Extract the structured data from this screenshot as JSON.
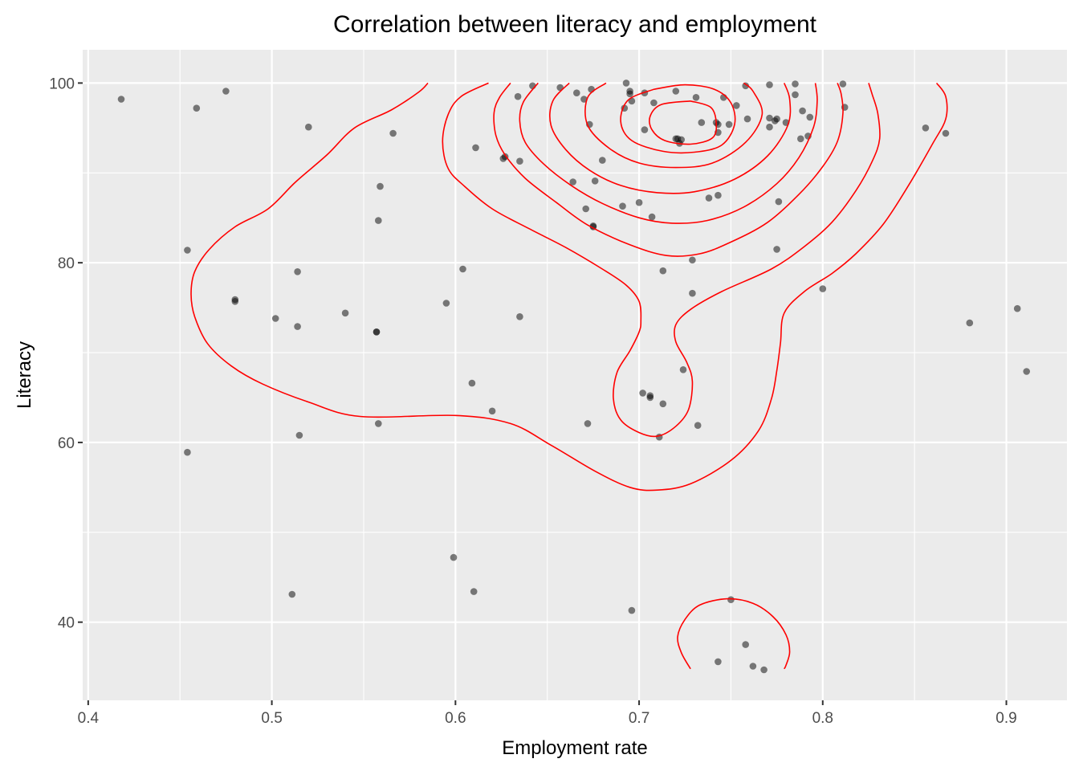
{
  "chart_data": {
    "type": "scatter",
    "title": "Correlation between literacy and employment",
    "xlabel": "Employment rate",
    "ylabel": "Literacy",
    "xlim": [
      0.397,
      0.933
    ],
    "ylim": [
      31.3,
      103.7
    ],
    "x_ticks": [
      0.4,
      0.5,
      0.6,
      0.7,
      0.8,
      0.9
    ],
    "x_tick_labels": [
      "0.4",
      "0.5",
      "0.6",
      "0.7",
      "0.8",
      "0.9"
    ],
    "y_ticks": [
      40,
      60,
      80,
      100
    ],
    "y_tick_labels": [
      "40",
      "60",
      "80",
      "100"
    ],
    "grid": true,
    "legend": "none",
    "colors": {
      "panel": "#ebebeb",
      "grid": "#ffffff",
      "points": "#000000",
      "contour": "#ff0000"
    },
    "points": [
      {
        "x": 0.418,
        "y": 98.2
      },
      {
        "x": 0.459,
        "y": 97.2
      },
      {
        "x": 0.475,
        "y": 99.1
      },
      {
        "x": 0.454,
        "y": 81.4
      },
      {
        "x": 0.454,
        "y": 58.9
      },
      {
        "x": 0.48,
        "y": 75.9
      },
      {
        "x": 0.48,
        "y": 75.7
      },
      {
        "x": 0.502,
        "y": 73.8
      },
      {
        "x": 0.511,
        "y": 43.1
      },
      {
        "x": 0.514,
        "y": 79.0
      },
      {
        "x": 0.514,
        "y": 72.9
      },
      {
        "x": 0.515,
        "y": 60.8
      },
      {
        "x": 0.52,
        "y": 95.1
      },
      {
        "x": 0.54,
        "y": 74.4
      },
      {
        "x": 0.557,
        "y": 72.3
      },
      {
        "x": 0.557,
        "y": 72.3
      },
      {
        "x": 0.558,
        "y": 84.7
      },
      {
        "x": 0.558,
        "y": 62.1
      },
      {
        "x": 0.559,
        "y": 88.5
      },
      {
        "x": 0.566,
        "y": 94.4
      },
      {
        "x": 0.595,
        "y": 75.5
      },
      {
        "x": 0.599,
        "y": 47.2
      },
      {
        "x": 0.604,
        "y": 79.3
      },
      {
        "x": 0.609,
        "y": 66.6
      },
      {
        "x": 0.61,
        "y": 43.4
      },
      {
        "x": 0.611,
        "y": 92.8
      },
      {
        "x": 0.62,
        "y": 63.5
      },
      {
        "x": 0.626,
        "y": 91.6
      },
      {
        "x": 0.627,
        "y": 91.8
      },
      {
        "x": 0.634,
        "y": 98.5
      },
      {
        "x": 0.635,
        "y": 91.3
      },
      {
        "x": 0.635,
        "y": 74.0
      },
      {
        "x": 0.642,
        "y": 99.7
      },
      {
        "x": 0.657,
        "y": 99.5
      },
      {
        "x": 0.664,
        "y": 89.0
      },
      {
        "x": 0.666,
        "y": 98.9
      },
      {
        "x": 0.67,
        "y": 98.2
      },
      {
        "x": 0.671,
        "y": 86.0
      },
      {
        "x": 0.672,
        "y": 62.1
      },
      {
        "x": 0.673,
        "y": 95.4
      },
      {
        "x": 0.674,
        "y": 99.3
      },
      {
        "x": 0.675,
        "y": 84.1
      },
      {
        "x": 0.675,
        "y": 84.0
      },
      {
        "x": 0.676,
        "y": 89.1
      },
      {
        "x": 0.68,
        "y": 91.4
      },
      {
        "x": 0.691,
        "y": 86.3
      },
      {
        "x": 0.692,
        "y": 97.2
      },
      {
        "x": 0.693,
        "y": 100.0
      },
      {
        "x": 0.695,
        "y": 99.1
      },
      {
        "x": 0.695,
        "y": 98.8
      },
      {
        "x": 0.696,
        "y": 41.3
      },
      {
        "x": 0.696,
        "y": 98.0
      },
      {
        "x": 0.7,
        "y": 86.7
      },
      {
        "x": 0.702,
        "y": 65.5
      },
      {
        "x": 0.703,
        "y": 98.9
      },
      {
        "x": 0.703,
        "y": 94.8
      },
      {
        "x": 0.706,
        "y": 65.0
      },
      {
        "x": 0.706,
        "y": 65.2
      },
      {
        "x": 0.707,
        "y": 85.1
      },
      {
        "x": 0.708,
        "y": 97.8
      },
      {
        "x": 0.711,
        "y": 60.6
      },
      {
        "x": 0.713,
        "y": 79.1
      },
      {
        "x": 0.713,
        "y": 64.3
      },
      {
        "x": 0.72,
        "y": 99.1
      },
      {
        "x": 0.72,
        "y": 93.8
      },
      {
        "x": 0.721,
        "y": 93.8
      },
      {
        "x": 0.722,
        "y": 93.3
      },
      {
        "x": 0.723,
        "y": 93.7
      },
      {
        "x": 0.724,
        "y": 68.1
      },
      {
        "x": 0.729,
        "y": 80.3
      },
      {
        "x": 0.729,
        "y": 76.6
      },
      {
        "x": 0.731,
        "y": 98.4
      },
      {
        "x": 0.732,
        "y": 61.9
      },
      {
        "x": 0.734,
        "y": 95.6
      },
      {
        "x": 0.738,
        "y": 87.2
      },
      {
        "x": 0.742,
        "y": 95.6
      },
      {
        "x": 0.743,
        "y": 95.4
      },
      {
        "x": 0.743,
        "y": 94.5
      },
      {
        "x": 0.743,
        "y": 87.5
      },
      {
        "x": 0.743,
        "y": 35.6
      },
      {
        "x": 0.746,
        "y": 98.4
      },
      {
        "x": 0.749,
        "y": 95.4
      },
      {
        "x": 0.75,
        "y": 42.5
      },
      {
        "x": 0.753,
        "y": 97.5
      },
      {
        "x": 0.758,
        "y": 37.5
      },
      {
        "x": 0.758,
        "y": 99.7
      },
      {
        "x": 0.759,
        "y": 96.0
      },
      {
        "x": 0.762,
        "y": 35.1
      },
      {
        "x": 0.768,
        "y": 34.7
      },
      {
        "x": 0.771,
        "y": 99.8
      },
      {
        "x": 0.771,
        "y": 96.1
      },
      {
        "x": 0.771,
        "y": 95.1
      },
      {
        "x": 0.774,
        "y": 95.8
      },
      {
        "x": 0.775,
        "y": 96.0
      },
      {
        "x": 0.775,
        "y": 81.5
      },
      {
        "x": 0.776,
        "y": 86.8
      },
      {
        "x": 0.78,
        "y": 95.6
      },
      {
        "x": 0.785,
        "y": 99.9
      },
      {
        "x": 0.785,
        "y": 98.7
      },
      {
        "x": 0.788,
        "y": 93.8
      },
      {
        "x": 0.789,
        "y": 96.9
      },
      {
        "x": 0.792,
        "y": 94.1
      },
      {
        "x": 0.793,
        "y": 96.2
      },
      {
        "x": 0.8,
        "y": 77.1
      },
      {
        "x": 0.811,
        "y": 99.9
      },
      {
        "x": 0.812,
        "y": 97.3
      },
      {
        "x": 0.856,
        "y": 95.0
      },
      {
        "x": 0.867,
        "y": 94.4
      },
      {
        "x": 0.88,
        "y": 73.3
      },
      {
        "x": 0.906,
        "y": 74.9
      },
      {
        "x": 0.911,
        "y": 67.9
      }
    ],
    "density_contours": [
      [
        [
          0.585,
          100.0
        ],
        [
          0.58,
          99.0
        ],
        [
          0.565,
          97.0
        ],
        [
          0.545,
          95.0
        ],
        [
          0.53,
          92.0
        ],
        [
          0.513,
          89.0
        ],
        [
          0.498,
          86.0
        ],
        [
          0.48,
          84.0
        ],
        [
          0.466,
          81.5
        ],
        [
          0.458,
          79.0
        ],
        [
          0.456,
          76.5
        ],
        [
          0.458,
          74.0
        ],
        [
          0.465,
          71.0
        ],
        [
          0.478,
          68.5
        ],
        [
          0.495,
          66.5
        ],
        [
          0.52,
          64.5
        ],
        [
          0.548,
          62.9
        ],
        [
          0.6,
          63.0
        ],
        [
          0.63,
          62.1
        ],
        [
          0.652,
          59.7
        ],
        [
          0.676,
          56.8
        ],
        [
          0.695,
          55.0
        ],
        [
          0.71,
          54.7
        ],
        [
          0.728,
          55.4
        ],
        [
          0.75,
          58.0
        ],
        [
          0.765,
          61.3
        ],
        [
          0.772,
          64.8
        ],
        [
          0.775,
          68.0
        ],
        [
          0.777,
          71.1
        ],
        [
          0.779,
          74.4
        ],
        [
          0.79,
          76.8
        ],
        [
          0.805,
          78.8
        ],
        [
          0.818,
          81.0
        ],
        [
          0.833,
          84.3
        ],
        [
          0.847,
          88.7
        ],
        [
          0.86,
          93.3
        ],
        [
          0.867,
          96.0
        ],
        [
          0.867,
          98.5
        ],
        [
          0.862,
          100.0
        ]
      ],
      [
        [
          0.618,
          100.0
        ],
        [
          0.603,
          98.5
        ],
        [
          0.596,
          96.5
        ],
        [
          0.593,
          93.5
        ],
        [
          0.596,
          90.5
        ],
        [
          0.605,
          88.5
        ],
        [
          0.62,
          86.0
        ],
        [
          0.64,
          83.8
        ],
        [
          0.66,
          81.7
        ],
        [
          0.68,
          79.3
        ],
        [
          0.693,
          77.5
        ],
        [
          0.7,
          75.7
        ],
        [
          0.701,
          73.5
        ],
        [
          0.7,
          72.3
        ],
        [
          0.695,
          70.2
        ],
        [
          0.688,
          67.8
        ],
        [
          0.686,
          64.9
        ],
        [
          0.69,
          62.5
        ],
        [
          0.7,
          61.1
        ],
        [
          0.71,
          60.7
        ],
        [
          0.72,
          61.8
        ],
        [
          0.727,
          63.7
        ],
        [
          0.729,
          66.8
        ],
        [
          0.726,
          68.9
        ],
        [
          0.72,
          71.2
        ],
        [
          0.72,
          73.1
        ],
        [
          0.728,
          74.8
        ],
        [
          0.745,
          76.8
        ],
        [
          0.772,
          79.3
        ],
        [
          0.79,
          81.8
        ],
        [
          0.805,
          84.5
        ],
        [
          0.818,
          88.0
        ],
        [
          0.827,
          91.3
        ],
        [
          0.831,
          93.8
        ],
        [
          0.83,
          96.6
        ],
        [
          0.827,
          98.7
        ],
        [
          0.825,
          100.0
        ]
      ],
      [
        [
          0.63,
          100.0
        ],
        [
          0.624,
          98.4
        ],
        [
          0.621,
          96.7
        ],
        [
          0.622,
          94.2
        ],
        [
          0.627,
          92.0
        ],
        [
          0.638,
          89.4
        ],
        [
          0.655,
          86.7
        ],
        [
          0.672,
          84.2
        ],
        [
          0.695,
          82.0
        ],
        [
          0.715,
          80.8
        ],
        [
          0.733,
          81.0
        ],
        [
          0.75,
          82.3
        ],
        [
          0.77,
          84.5
        ],
        [
          0.787,
          87.6
        ],
        [
          0.8,
          90.7
        ],
        [
          0.808,
          93.5
        ],
        [
          0.811,
          96.6
        ],
        [
          0.81,
          98.8
        ],
        [
          0.808,
          100.0
        ]
      ],
      [
        [
          0.645,
          100.0
        ],
        [
          0.637,
          97.9
        ],
        [
          0.635,
          95.8
        ],
        [
          0.638,
          93.4
        ],
        [
          0.648,
          91.0
        ],
        [
          0.663,
          88.6
        ],
        [
          0.68,
          86.6
        ],
        [
          0.7,
          85.0
        ],
        [
          0.718,
          84.4
        ],
        [
          0.737,
          84.7
        ],
        [
          0.757,
          86.2
        ],
        [
          0.775,
          88.8
        ],
        [
          0.787,
          91.7
        ],
        [
          0.795,
          95.1
        ],
        [
          0.797,
          98.0
        ],
        [
          0.796,
          100.0
        ]
      ],
      [
        [
          0.662,
          100.0
        ],
        [
          0.653,
          98.0
        ],
        [
          0.652,
          95.3
        ],
        [
          0.66,
          92.6
        ],
        [
          0.673,
          90.3
        ],
        [
          0.69,
          88.6
        ],
        [
          0.71,
          87.8
        ],
        [
          0.73,
          87.9
        ],
        [
          0.752,
          89.3
        ],
        [
          0.77,
          91.9
        ],
        [
          0.781,
          95.3
        ],
        [
          0.782,
          98.2
        ],
        [
          0.779,
          100.0
        ]
      ],
      [
        [
          0.682,
          100.0
        ],
        [
          0.672,
          98.4
        ],
        [
          0.672,
          95.3
        ],
        [
          0.684,
          92.7
        ],
        [
          0.7,
          91.1
        ],
        [
          0.72,
          90.6
        ],
        [
          0.74,
          91.1
        ],
        [
          0.758,
          93.4
        ],
        [
          0.767,
          96.5
        ],
        [
          0.762,
          99.1
        ],
        [
          0.757,
          100.0
        ]
      ],
      [
        [
          0.708,
          99.3
        ],
        [
          0.694,
          98.1
        ],
        [
          0.69,
          95.7
        ],
        [
          0.696,
          93.6
        ],
        [
          0.713,
          92.4
        ],
        [
          0.73,
          92.3
        ],
        [
          0.745,
          93.1
        ],
        [
          0.752,
          95.4
        ],
        [
          0.75,
          97.8
        ],
        [
          0.741,
          99.3
        ],
        [
          0.725,
          99.8
        ],
        [
          0.708,
          99.3
        ]
      ],
      [
        [
          0.728,
          98.0
        ],
        [
          0.712,
          97.6
        ],
        [
          0.706,
          96.3
        ],
        [
          0.707,
          94.8
        ],
        [
          0.714,
          93.6
        ],
        [
          0.728,
          93.2
        ],
        [
          0.74,
          93.9
        ],
        [
          0.742,
          95.6
        ],
        [
          0.739,
          97.3
        ],
        [
          0.728,
          98.0
        ]
      ],
      [
        [
          0.728,
          34.8
        ],
        [
          0.723,
          36.6
        ],
        [
          0.721,
          38.4
        ],
        [
          0.725,
          40.3
        ],
        [
          0.733,
          41.9
        ],
        [
          0.748,
          42.6
        ],
        [
          0.762,
          42.1
        ],
        [
          0.773,
          40.6
        ],
        [
          0.78,
          38.6
        ],
        [
          0.782,
          36.7
        ],
        [
          0.78,
          35.2
        ],
        [
          0.779,
          34.8
        ]
      ]
    ]
  }
}
